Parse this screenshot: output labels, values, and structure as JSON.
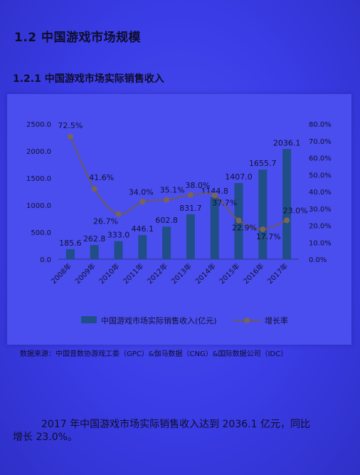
{
  "section_title": "1.2 中国游戏市场规模",
  "subsection_title": "1.2.1 中国游戏市场实际销售收入",
  "source": "数据来源：中国音数协游戏工委（GPC）&伽马数据（CNG）&国际数据公司（IDC）",
  "paragraph_line1": "2017 年中国游戏市场实际销售收入达到 2036.1 亿元，同比",
  "paragraph_line2": "增长 23.0%。",
  "colors": {
    "bar": "#1f4f86",
    "line": "#6a5a5a",
    "marker": "#7a6458"
  },
  "chart_data": {
    "type": "bar",
    "categories": [
      "2008年",
      "2009年",
      "2010年",
      "2011年",
      "2012年",
      "2013年",
      "2014年",
      "2015年",
      "2016年",
      "2017年"
    ],
    "series": [
      {
        "name": "中国游戏市场实际销售收入(亿元)",
        "type": "bar",
        "axis": "left",
        "values": [
          185.6,
          262.8,
          333.0,
          446.1,
          602.8,
          831.7,
          1144.8,
          1407.0,
          1655.7,
          2036.1
        ]
      },
      {
        "name": "增长率",
        "type": "line",
        "axis": "right",
        "values": [
          72.5,
          41.6,
          26.7,
          34.0,
          35.1,
          38.0,
          37.7,
          22.9,
          17.7,
          23.0
        ]
      }
    ],
    "bar_labels": [
      "185.6",
      "262.8",
      "333.0",
      "446.1",
      "602.8",
      "831.7",
      "1144.8",
      "1407.0",
      "1655.7",
      "2036.1"
    ],
    "line_labels": [
      "72.5%",
      "41.6%",
      "26.7%",
      "34.0%",
      "35.1%",
      "38.0%",
      "37.7%",
      "22.9%",
      "17.7%",
      "23.0%"
    ],
    "y_left": {
      "range": [
        0,
        2500
      ],
      "ticks": [
        "0.0",
        "500.0",
        "1000.0",
        "1500.0",
        "2000.0",
        "2500.0"
      ]
    },
    "y_right": {
      "range": [
        0,
        80
      ],
      "ticks": [
        "0.0%",
        "10.0%",
        "20.0%",
        "30.0%",
        "40.0%",
        "50.0%",
        "60.0%",
        "70.0%",
        "80.0%"
      ]
    },
    "legend_position": "bottom"
  }
}
